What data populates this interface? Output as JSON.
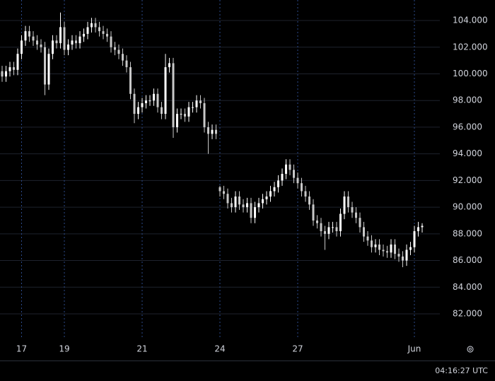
{
  "chart_data": {
    "type": "candlestick",
    "categories": [
      null,
      null,
      null,
      null,
      null,
      "17",
      null,
      null,
      null,
      null,
      null,
      null,
      null,
      null,
      null,
      null,
      "19",
      null,
      null,
      null,
      null,
      null,
      null,
      null,
      null,
      null,
      null,
      null,
      null,
      null,
      null,
      null,
      null,
      null,
      null,
      null,
      "21",
      null,
      null,
      null,
      null,
      null,
      null,
      null,
      null,
      null,
      null,
      null,
      null,
      null,
      null,
      null,
      null,
      null,
      null,
      null,
      "24",
      null,
      null,
      null,
      null,
      null,
      null,
      null,
      null,
      null,
      null,
      null,
      null,
      null,
      null,
      null,
      null,
      null,
      null,
      null,
      "27",
      null,
      null,
      null,
      null,
      null,
      null,
      null,
      null,
      null,
      null,
      null,
      null,
      null,
      null,
      null,
      null,
      null,
      null,
      null,
      null,
      null,
      null,
      null,
      null,
      null,
      null,
      null,
      null,
      null,
      "Jun",
      null,
      null
    ],
    "open": [
      100.2,
      99.8,
      100.2,
      100.5,
      100.3,
      101.5,
      102.5,
      103.2,
      102.8,
      102.5,
      102.2,
      102,
      99.2,
      101.5,
      102.5,
      102.3,
      103.5,
      101.8,
      102.2,
      102.5,
      102.3,
      102.8,
      103,
      103.5,
      103.8,
      103.5,
      103.2,
      103,
      102.8,
      102,
      101.8,
      101.5,
      101,
      100.5,
      98.5,
      97,
      97.5,
      97.8,
      98,
      98,
      98.5,
      97.5,
      97,
      100.5,
      100.8,
      96,
      97,
      97,
      96.8,
      97.5,
      97.5,
      98,
      97.8,
      96,
      95.5,
      95.8,
      91.5,
      91.2,
      91,
      90.3,
      90,
      90.8,
      90.2,
      90,
      90.3,
      89.2,
      90,
      90.3,
      90.6,
      90.8,
      91.2,
      91.5,
      92,
      92.5,
      93.2,
      92.8,
      92.2,
      91.8,
      91.2,
      90.8,
      90.2,
      89,
      88.8,
      88.2,
      88,
      88.5,
      88.5,
      88.2,
      89.5,
      90.8,
      90,
      89.6,
      89.2,
      88.5,
      87.8,
      87.5,
      87,
      87.2,
      86.8,
      86.7,
      86.6,
      87.2,
      86.5,
      86.3,
      86,
      86.8,
      87,
      88.2,
      88.5
    ],
    "high": [
      100.6,
      100.6,
      100.9,
      100.9,
      101.9,
      102.9,
      103.6,
      103.6,
      103.2,
      102.9,
      102.6,
      102.4,
      101.9,
      102.9,
      102.9,
      104.6,
      103.9,
      102.6,
      102.9,
      102.9,
      103.2,
      103.4,
      103.9,
      104.2,
      104.2,
      103.9,
      103.6,
      103.4,
      103.2,
      102.4,
      102.2,
      101.9,
      101.4,
      100.9,
      98.9,
      97.9,
      98.2,
      98.4,
      98.4,
      98.9,
      98.9,
      97.9,
      101.5,
      101.2,
      101.2,
      97.4,
      97.4,
      97.4,
      97.9,
      97.9,
      98.4,
      98.4,
      98.2,
      96.4,
      96.2,
      96.2,
      91.6,
      91.6,
      91.4,
      90.7,
      91.2,
      91.2,
      90.6,
      90.7,
      90.7,
      90.4,
      90.7,
      91,
      91.2,
      91.6,
      91.9,
      92.4,
      92.9,
      93.6,
      93.6,
      93.2,
      92.6,
      92.2,
      91.6,
      91.2,
      90.6,
      89.4,
      89.2,
      88.6,
      88.9,
      88.9,
      88.9,
      89.9,
      91.2,
      91.2,
      90.4,
      90,
      89.6,
      88.9,
      88.2,
      87.9,
      87.6,
      87.6,
      87.2,
      87.1,
      87.6,
      87.6,
      86.9,
      86.7,
      87.2,
      87.4,
      88.6,
      88.9,
      88.8
    ],
    "low": [
      99.4,
      99.4,
      99.8,
      99.9,
      99.9,
      101.1,
      102.1,
      102.4,
      102.1,
      101.8,
      101.6,
      98.4,
      98.8,
      101.1,
      101.9,
      101.9,
      101.4,
      101.4,
      101.8,
      101.9,
      101.9,
      102.4,
      102.6,
      103.1,
      103.1,
      102.8,
      102.6,
      102.4,
      101.6,
      101.4,
      101.1,
      100.6,
      100.1,
      98.1,
      96.3,
      96.6,
      97.1,
      97.4,
      97.6,
      97.6,
      97.1,
      96.6,
      96.6,
      100.1,
      95.2,
      95.6,
      96.6,
      96.4,
      96.4,
      97.1,
      97.1,
      97.4,
      95.6,
      94,
      95.1,
      95.1,
      90.8,
      90.6,
      89.9,
      89.6,
      89.6,
      89.8,
      89.6,
      89.6,
      88.8,
      88.8,
      89.6,
      89.9,
      90.2,
      90.4,
      90.8,
      91.1,
      91.6,
      92.1,
      92.4,
      91.8,
      91.4,
      90.8,
      90.4,
      89.8,
      88.6,
      88.4,
      87.8,
      86.8,
      87.6,
      88.1,
      87.8,
      87.8,
      89.1,
      89.6,
      89.2,
      88.8,
      88.1,
      87.4,
      87.1,
      86.6,
      86.6,
      86.4,
      86.3,
      86.2,
      86.2,
      86.1,
      85.9,
      85.5,
      85.6,
      86.4,
      86.6,
      87.8,
      88.1
    ],
    "close": [
      99.8,
      100.2,
      100.5,
      100.3,
      101.5,
      102.5,
      103.2,
      102.8,
      102.5,
      102.2,
      102,
      99.2,
      101.5,
      102.5,
      102.3,
      103.5,
      101.8,
      102.2,
      102.5,
      102.3,
      102.8,
      103,
      103.5,
      103.8,
      103.5,
      103.2,
      103,
      102.8,
      102,
      101.8,
      101.5,
      101,
      100.5,
      98.5,
      97,
      97.5,
      97.8,
      98,
      98,
      98.5,
      97.5,
      97,
      100.5,
      100.8,
      96,
      97,
      97,
      96.8,
      97.5,
      97.5,
      98,
      97.8,
      96,
      95.5,
      95.8,
      95.5,
      91.2,
      91,
      90.3,
      90,
      90.8,
      90.2,
      90,
      90.3,
      89.2,
      90,
      90.3,
      90.6,
      90.8,
      91.2,
      91.5,
      92,
      92.5,
      93.2,
      92.8,
      92.2,
      91.8,
      91.2,
      90.8,
      90.2,
      89,
      88.8,
      88.2,
      88,
      88.5,
      88.5,
      88.2,
      89.5,
      90.8,
      90,
      89.6,
      89.2,
      88.5,
      87.8,
      87.5,
      87,
      87.2,
      86.8,
      86.7,
      86.6,
      87.2,
      86.5,
      86.3,
      86,
      86.8,
      87,
      88.2,
      88.5,
      88.6
    ],
    "up_color": "#ffffff",
    "down_color": "#c8c8c8",
    "ylim": [
      80.25,
      105.54
    ],
    "yticks": [
      {
        "value": 82,
        "label": "82.000"
      },
      {
        "value": 84,
        "label": "84.000"
      },
      {
        "value": 86,
        "label": "86.000"
      },
      {
        "value": 88,
        "label": "88.000"
      },
      {
        "value": 90,
        "label": "90.000"
      },
      {
        "value": 92,
        "label": "92.000"
      },
      {
        "value": 94,
        "label": "94.000"
      },
      {
        "value": 96,
        "label": "96.000"
      },
      {
        "value": 98,
        "label": "98.000"
      },
      {
        "value": 100,
        "label": "100.000"
      },
      {
        "value": 102,
        "label": "102.000"
      },
      {
        "value": 104,
        "label": "104.000"
      }
    ],
    "grid": true,
    "timestamp": "04:16:27 UTC"
  }
}
